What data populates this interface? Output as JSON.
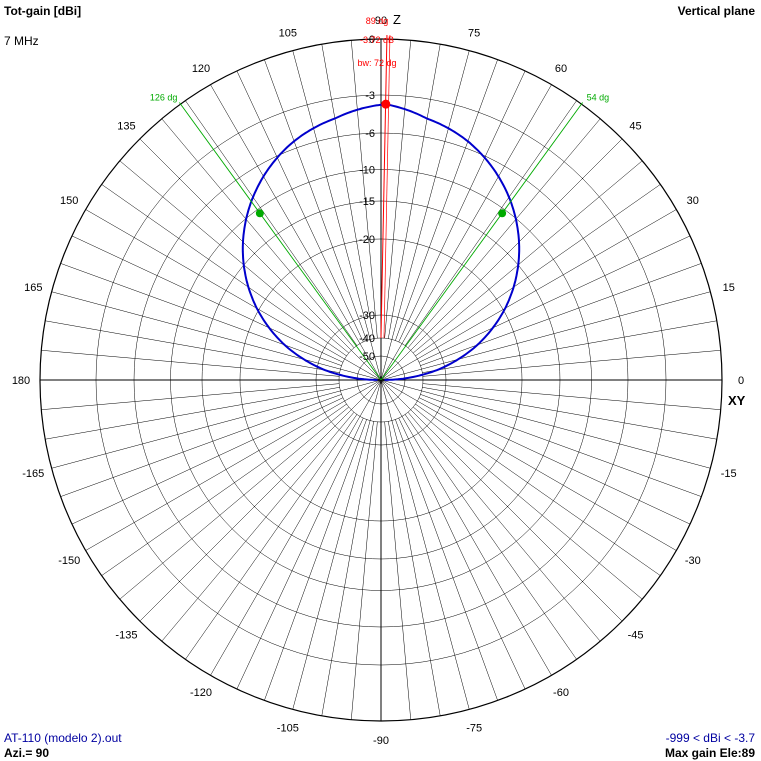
{
  "header": {
    "title": "Tot-gain [dBi]",
    "frequency": "7 MHz",
    "plane": "Vertical plane"
  },
  "footer": {
    "file": "AT-110 (modelo 2).out",
    "azimuth": "Azi.= 90",
    "range": "-999 < dBi < -3.7",
    "max_gain": "Max gain Ele:89"
  },
  "colors": {
    "pattern": "#0000cc",
    "marker_max": "#ff0000",
    "marker_bw": "#00aa00",
    "grid": "#000000"
  },
  "chart_data": {
    "type": "polar",
    "title": "Tot-gain [dBi]",
    "axis_labels": {
      "up": "Z",
      "right": "XY"
    },
    "angle_ticks": [
      0,
      15,
      30,
      45,
      60,
      75,
      90,
      105,
      120,
      135,
      150,
      165,
      180,
      -165,
      -150,
      -135,
      -120,
      -105,
      -90,
      -75,
      -60,
      -45,
      -30,
      -15
    ],
    "angle_tick_labels": [
      "0",
      "15",
      "30",
      "45",
      "60",
      "75",
      "90",
      "105",
      "120",
      "135",
      "150",
      "165",
      "180",
      "-165",
      "-150",
      "-135",
      "-120",
      "-105",
      "-90",
      "-75",
      "-60",
      "-45",
      "-30",
      "-15"
    ],
    "radial_ticks_db": [
      0,
      -3,
      -6,
      -10,
      -15,
      -20,
      -30,
      -40,
      -50
    ],
    "radial_tick_labels": [
      "0",
      "-3",
      "-6",
      "-10",
      "-15",
      "-20",
      "-30",
      "-40",
      "-50"
    ],
    "series": [
      {
        "elevation_deg": [
          0,
          5,
          10,
          20,
          30,
          40,
          54,
          60,
          70,
          80,
          89,
          100,
          110,
          120,
          126,
          140,
          150,
          160,
          170,
          175,
          180
        ],
        "gain_dbi": [
          -50,
          -30.5,
          -24.6,
          -18.9,
          -15.6,
          -13.3,
          -10.7,
          -9.8,
          -8.5,
          -7.9,
          -3.72,
          -7.8,
          -8.4,
          -9.7,
          -10.7,
          -13.3,
          -15.6,
          -18.9,
          -24.6,
          -30.5,
          -50
        ]
      }
    ],
    "max_marker": {
      "elevation_deg": 89,
      "gain_dbi": -3.72,
      "label_angle": "89 dg",
      "label_gain": "-3.72 dB",
      "label_bw": "bw: 72 dg"
    },
    "beamwidth_markers": [
      {
        "elevation_deg": 54,
        "label": "54 dg"
      },
      {
        "elevation_deg": 126,
        "label": "126 dg"
      }
    ]
  }
}
